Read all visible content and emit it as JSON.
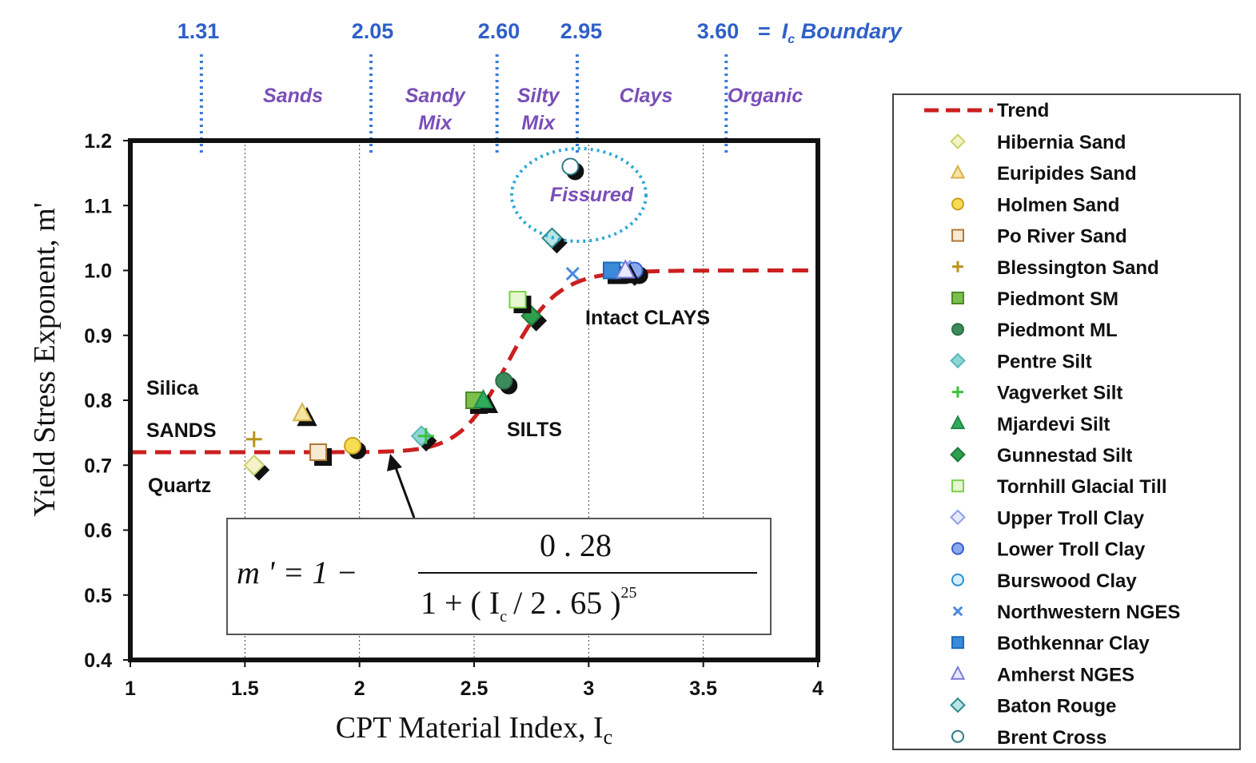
{
  "chart_data": {
    "type": "scatter",
    "xlabel": "CPT Material Index, I",
    "xlabel_sub": "c",
    "ylabel": "Yield Stress Exponent, m'",
    "xlim": [
      1,
      4
    ],
    "ylim": [
      0.4,
      1.2
    ],
    "xticks": [
      "1",
      "1.5",
      "2",
      "2.5",
      "3",
      "3.5",
      "4"
    ],
    "yticks": [
      "0.4",
      "0.5",
      "0.6",
      "0.7",
      "0.8",
      "0.9",
      "1.0",
      "1.1",
      "1.2"
    ],
    "gridlines_x": [
      1.5,
      2,
      2.5,
      3,
      3.5
    ],
    "boundaries": [
      {
        "value": 1.31,
        "label": "1.31"
      },
      {
        "value": 2.05,
        "label": "2.05"
      },
      {
        "value": 2.6,
        "label": "2.60"
      },
      {
        "value": 2.95,
        "label": "2.95"
      },
      {
        "value": 3.6,
        "label": "3.60"
      }
    ],
    "boundary_caption_eq": "=",
    "boundary_caption_I": "I",
    "boundary_caption_sub": "c",
    "boundary_caption_rest": " Boundary",
    "zones": [
      {
        "lines": [
          "Sands"
        ],
        "x": 1.71
      },
      {
        "lines": [
          "Sandy",
          "Mix"
        ],
        "x": 2.33
      },
      {
        "lines": [
          "Silty",
          "Mix"
        ],
        "x": 2.78
      },
      {
        "lines": [
          "Clays"
        ],
        "x": 3.25
      },
      {
        "lines": [
          "Organic"
        ],
        "x": 3.77
      }
    ],
    "trend": {
      "name": "Trend",
      "equation": "m' = 1 - 0.28 / (1 + (Ic/2.65)^25)",
      "color": "#cc1f1f"
    },
    "annotations": {
      "silica": "Silica",
      "sands": "SANDS",
      "quartz": "Quartz",
      "silts": "SILTS",
      "intact_clays": "Intact CLAYS",
      "fissured": "Fissured"
    },
    "equation_box": {
      "lhs": "m ' = 1 −",
      "numerator": "0 . 28",
      "den_left": "1 + ( I",
      "den_sub": "c",
      "den_right": "/ 2 . 65 )",
      "den_exp": "25"
    },
    "series": [
      {
        "name": "Hibernia Sand",
        "marker": "diamond",
        "color": "#c8d36a",
        "fill": "#f6f1c8",
        "points": [
          [
            1.54,
            0.7
          ]
        ]
      },
      {
        "name": "Euripides Sand",
        "marker": "triangle",
        "color": "#d8b24a",
        "fill": "#f4e4a4",
        "points": [
          [
            1.75,
            0.78
          ]
        ]
      },
      {
        "name": "Holmen Sand",
        "marker": "circle",
        "color": "#c9a21e",
        "fill": "#f5dc50",
        "points": [
          [
            1.97,
            0.73
          ]
        ]
      },
      {
        "name": "Po River Sand",
        "marker": "square",
        "color": "#b07a3a",
        "fill": "#f6ead2",
        "points": [
          [
            1.82,
            0.72
          ]
        ]
      },
      {
        "name": "Blessington Sand",
        "marker": "plus",
        "color": "#b8941c",
        "fill": "#b8941c",
        "points": [
          [
            1.54,
            0.74
          ]
        ]
      },
      {
        "name": "Piedmont SM",
        "marker": "square",
        "color": "#4a8a2a",
        "fill": "#7cbf4a",
        "points": [
          [
            2.5,
            0.8
          ]
        ]
      },
      {
        "name": "Piedmont ML",
        "marker": "circle",
        "color": "#2d6e46",
        "fill": "#3d8a5a",
        "points": [
          [
            2.63,
            0.83
          ]
        ]
      },
      {
        "name": "Pentre Silt",
        "marker": "diamond",
        "color": "#59b8b8",
        "fill": "#8ed6d6",
        "points": [
          [
            2.27,
            0.745
          ]
        ]
      },
      {
        "name": "Vagverket Silt",
        "marker": "plus",
        "color": "#3cc03c",
        "fill": "#3cc03c",
        "points": [
          [
            2.29,
            0.745
          ]
        ]
      },
      {
        "name": "Mjardevi Silt",
        "marker": "triangle",
        "color": "#1f8a4a",
        "fill": "#2fae5a",
        "points": [
          [
            2.54,
            0.8
          ]
        ]
      },
      {
        "name": "Gunnestad Silt",
        "marker": "diamond",
        "color": "#1f7a3a",
        "fill": "#2f9e4e",
        "points": [
          [
            2.75,
            0.93
          ]
        ]
      },
      {
        "name": "Tornhill Glacial Till",
        "marker": "square",
        "color": "#7ccf4a",
        "fill": "#e6f7d0",
        "points": [
          [
            2.69,
            0.955
          ]
        ]
      },
      {
        "name": "Upper Troll Clay",
        "marker": "diamond",
        "color": "#8f9ee8",
        "fill": "#e6eaff",
        "points": [
          [
            3.18,
            1.0
          ]
        ]
      },
      {
        "name": "Lower Troll Clay",
        "marker": "circle",
        "color": "#3b5fc8",
        "fill": "#8aa8f0",
        "points": [
          [
            3.2,
            1.0
          ]
        ]
      },
      {
        "name": "Burswood Clay",
        "marker": "circle",
        "color": "#2f90d0",
        "fill": "#d6eefc",
        "points": [
          [
            3.14,
            1.0
          ]
        ]
      },
      {
        "name": "Northwestern NGES",
        "marker": "x",
        "color": "#4a8ae0",
        "fill": "#4a8ae0",
        "points": [
          [
            2.93,
            0.995
          ]
        ]
      },
      {
        "name": "Bothkennar Clay",
        "marker": "square",
        "color": "#1f6ab8",
        "fill": "#3a8ad8",
        "points": [
          [
            3.1,
            1.0
          ]
        ]
      },
      {
        "name": "Amherst NGES",
        "marker": "triangle",
        "color": "#7a7ad8",
        "fill": "#e8e8ff",
        "points": [
          [
            3.16,
            1.0
          ]
        ]
      },
      {
        "name": "Baton Rouge",
        "marker": "diamond",
        "color": "#2f8a8a",
        "fill": "#b8e6e6",
        "points": [
          [
            2.84,
            1.05
          ]
        ]
      },
      {
        "name": "Brent Cross",
        "marker": "circle",
        "color": "#2f7a8a",
        "fill": "#ffffff",
        "points": [
          [
            2.92,
            1.16
          ]
        ]
      }
    ]
  }
}
